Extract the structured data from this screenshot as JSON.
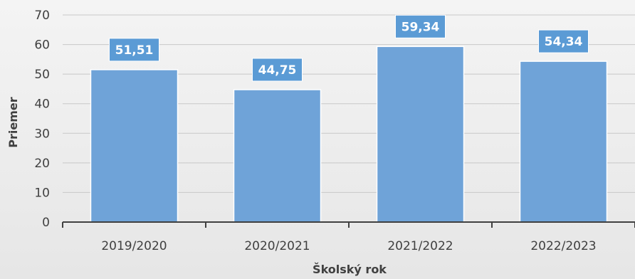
{
  "chart_data": {
    "type": "bar",
    "categories": [
      "2019/2020",
      "2020/2021",
      "2021/2022",
      "2022/2023"
    ],
    "values": [
      51.51,
      44.75,
      59.34,
      54.34
    ],
    "data_labels": [
      "51,51",
      "44,75",
      "59,34",
      "54,34"
    ],
    "xlabel": "Školský rok",
    "ylabel": "Priemer",
    "ylim": [
      0,
      70
    ],
    "yticks": [
      0,
      10,
      20,
      30,
      40,
      50,
      60,
      70
    ],
    "grid": true,
    "bar_color": "#6fa3d8",
    "label_box_color": "#5b9bd5"
  }
}
